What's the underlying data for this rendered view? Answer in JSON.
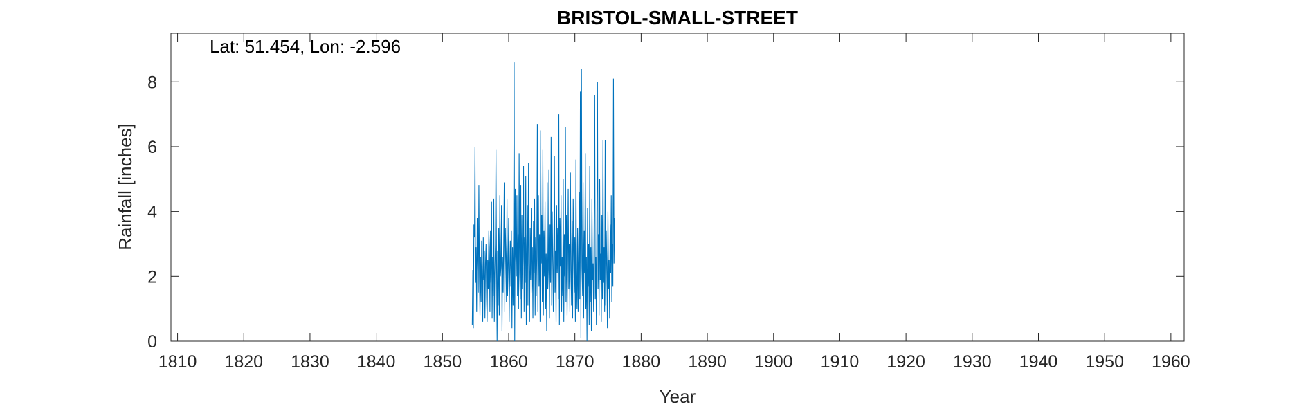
{
  "chart_data": {
    "type": "line",
    "title": "BRISTOL-SMALL-STREET",
    "annotation": "Lat: 51.454, Lon: -2.596",
    "xlabel": "Year",
    "ylabel": "Rainfall [inches]",
    "xlim": [
      1809,
      1962
    ],
    "ylim": [
      0,
      9.5
    ],
    "xticks": [
      1810,
      1820,
      1830,
      1840,
      1850,
      1860,
      1870,
      1880,
      1890,
      1900,
      1910,
      1920,
      1930,
      1940,
      1950,
      1960
    ],
    "yticks": [
      0,
      2,
      4,
      6,
      8
    ],
    "grid": false,
    "series_color": "#0072BD",
    "series": [
      {
        "x_start": 1854.5,
        "x_step": 0.0833,
        "values": [
          0.5,
          2.2,
          0.4,
          3.6,
          3.2,
          6.0,
          1.8,
          2.9,
          0.9,
          3.8,
          2.4,
          1.5,
          4.8,
          2.0,
          0.8,
          2.6,
          1.2,
          3.1,
          2.2,
          0.6,
          3.2,
          1.9,
          2.8,
          0.7,
          2.4,
          3.0,
          1.3,
          0.6,
          2.5,
          1.6,
          3.4,
          2.9,
          0.9,
          3.4,
          1.8,
          4.3,
          0.7,
          2.6,
          1.4,
          4.4,
          0.6,
          2.1,
          3.0,
          5.9,
          2.5,
          0.0,
          2.8,
          1.1,
          3.5,
          0.8,
          4.5,
          2.0,
          2.3,
          4.2,
          0.3,
          2.6,
          1.5,
          3.0,
          4.9,
          0.9,
          3.5,
          2.7,
          1.2,
          4.4,
          1.4,
          2.3,
          3.8,
          0.6,
          2.2,
          3.1,
          1.7,
          3.4,
          0.4,
          2.9,
          1.1,
          3.6,
          8.6,
          0.0,
          4.7,
          2.6,
          2.0,
          4.5,
          1.4,
          3.3,
          1.0,
          5.8,
          2.1,
          1.3,
          4.8,
          0.7,
          3.9,
          1.6,
          2.6,
          5.4,
          0.9,
          3.2,
          1.8,
          5.1,
          0.5,
          2.9,
          4.2,
          1.1,
          5.5,
          2.4,
          0.6,
          3.5,
          1.9,
          4.1,
          1.5,
          2.9,
          0.7,
          3.7,
          2.1,
          4.4,
          0.8,
          3.2,
          1.4,
          2.6,
          6.7,
          0.9,
          4.5,
          1.7,
          3.3,
          0.6,
          6.5,
          2.4,
          3.9,
          1.2,
          5.9,
          0.8,
          3.4,
          2.0,
          4.3,
          1.0,
          2.7,
          0.3,
          4.9,
          1.6,
          2.2,
          5.3,
          0.7,
          3.6,
          1.8,
          6.3,
          1.1,
          4.0,
          2.5,
          0.9,
          3.1,
          5.7,
          1.5,
          2.8,
          0.6,
          4.2,
          2.1,
          3.5,
          1.3,
          7.0,
          0.5,
          3.8,
          2.3,
          4.5,
          0.9,
          2.6,
          1.4,
          5.0,
          0.6,
          3.3,
          2.0,
          6.6,
          1.2,
          3.9,
          0.8,
          2.4,
          4.7,
          1.6,
          3.0,
          0.9,
          5.2,
          2.2,
          1.1,
          3.7,
          0.7,
          4.4,
          2.7,
          1.5,
          3.2,
          0.6,
          5.6,
          2.0,
          1.0,
          3.5,
          0.9,
          2.8,
          4.6,
          1.3,
          7.7,
          0.1,
          8.4,
          2.3,
          1.4,
          4.9,
          0.7,
          3.4,
          2.1,
          5.8,
          1.0,
          2.6,
          0.0,
          4.1,
          1.7,
          3.0,
          0.5,
          5.4,
          1.2,
          2.9,
          0.3,
          4.4,
          1.9,
          2.4,
          0.9,
          3.7,
          7.6,
          1.3,
          2.6,
          0.5,
          4.2,
          8.0,
          1.6,
          3.3,
          0.8,
          5.0,
          1.9,
          2.7,
          0.6,
          3.9,
          1.3,
          6.2,
          1.8,
          2.9,
          0.9,
          6.2,
          1.1,
          3.4,
          2.3,
          0.4,
          4.0,
          1.6,
          2.5,
          0.7,
          3.6,
          2.1,
          4.5,
          1.2,
          3.0,
          1.7,
          8.1,
          2.4,
          3.8
        ]
      }
    ]
  }
}
